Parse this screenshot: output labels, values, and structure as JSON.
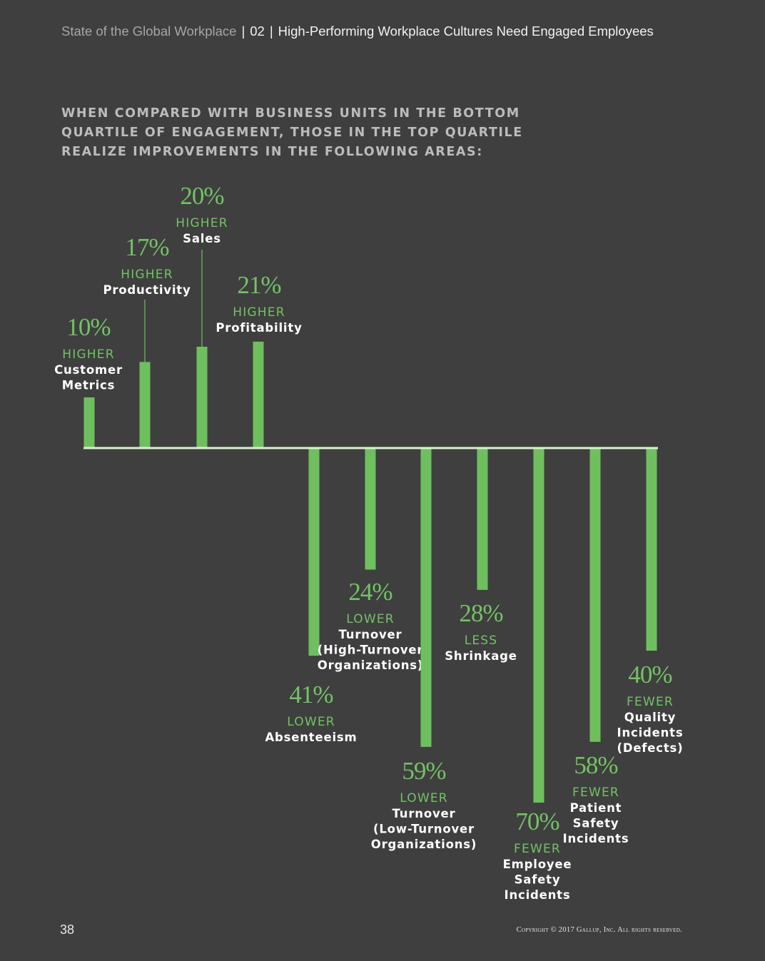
{
  "header": {
    "publication": "State of the Global Workplace",
    "section_number": "02",
    "section_title": "High-Performing Workplace Cultures Need Engaged Employees",
    "separator": "|"
  },
  "intro_lines": [
    "WHEN COMPARED WITH BUSINESS UNITS IN THE BOTTOM",
    "QUARTILE OF ENGAGEMENT, THOSE IN THE TOP QUARTILE",
    "REALIZE IMPROVEMENTS IN THE FOLLOWING AREAS:"
  ],
  "footer": {
    "page_number": "38",
    "copyright": "Copyright © 2017 Gallup, Inc. All rights reserved."
  },
  "colors": {
    "background": "#3f3f3f",
    "bar": "#6fbf5f",
    "value_text": "#73c265",
    "direction_text": "#73c265",
    "label_text": "#ffffff",
    "baseline": "#d8f0d0",
    "intro_text": "#bcbcbc"
  },
  "chart_data": {
    "type": "bar",
    "categories": [
      "Customer Metrics",
      "Productivity",
      "Sales",
      "Profitability",
      "Absenteeism",
      "Turnover (High-Turnover Organizations)",
      "Turnover (Low-Turnover Organizations)",
      "Shrinkage",
      "Employee Safety Incidents",
      "Patient Safety Incidents",
      "Quality Incidents (Defects)"
    ],
    "values": [
      10,
      17,
      20,
      21,
      -41,
      -24,
      -59,
      -28,
      -70,
      -58,
      -40
    ],
    "items": [
      {
        "value_label": "10%",
        "direction": "HIGHER",
        "label_lines": [
          "Customer",
          "Metrics"
        ]
      },
      {
        "value_label": "17%",
        "direction": "HIGHER",
        "label_lines": [
          "Productivity"
        ]
      },
      {
        "value_label": "20%",
        "direction": "HIGHER",
        "label_lines": [
          "Sales"
        ]
      },
      {
        "value_label": "21%",
        "direction": "HIGHER",
        "label_lines": [
          "Profitability"
        ]
      },
      {
        "value_label": "41%",
        "direction": "LOWER",
        "label_lines": [
          "Absenteeism"
        ]
      },
      {
        "value_label": "24%",
        "direction": "LOWER",
        "label_lines": [
          "Turnover",
          "(High-Turnover",
          "Organizations)"
        ]
      },
      {
        "value_label": "59%",
        "direction": "LOWER",
        "label_lines": [
          "Turnover",
          "(Low-Turnover",
          "Organizations)"
        ]
      },
      {
        "value_label": "28%",
        "direction": "LESS",
        "label_lines": [
          "Shrinkage"
        ]
      },
      {
        "value_label": "70%",
        "direction": "FEWER",
        "label_lines": [
          "Employee",
          "Safety",
          "Incidents"
        ]
      },
      {
        "value_label": "58%",
        "direction": "FEWER",
        "label_lines": [
          "Patient",
          "Safety",
          "Incidents"
        ]
      },
      {
        "value_label": "40%",
        "direction": "FEWER",
        "label_lines": [
          "Quality",
          "Incidents",
          "(Defects)"
        ]
      }
    ],
    "title": "",
    "xlabel": "",
    "ylabel": "",
    "ylim": [
      -70,
      21
    ],
    "grid": false,
    "legend": "none"
  }
}
